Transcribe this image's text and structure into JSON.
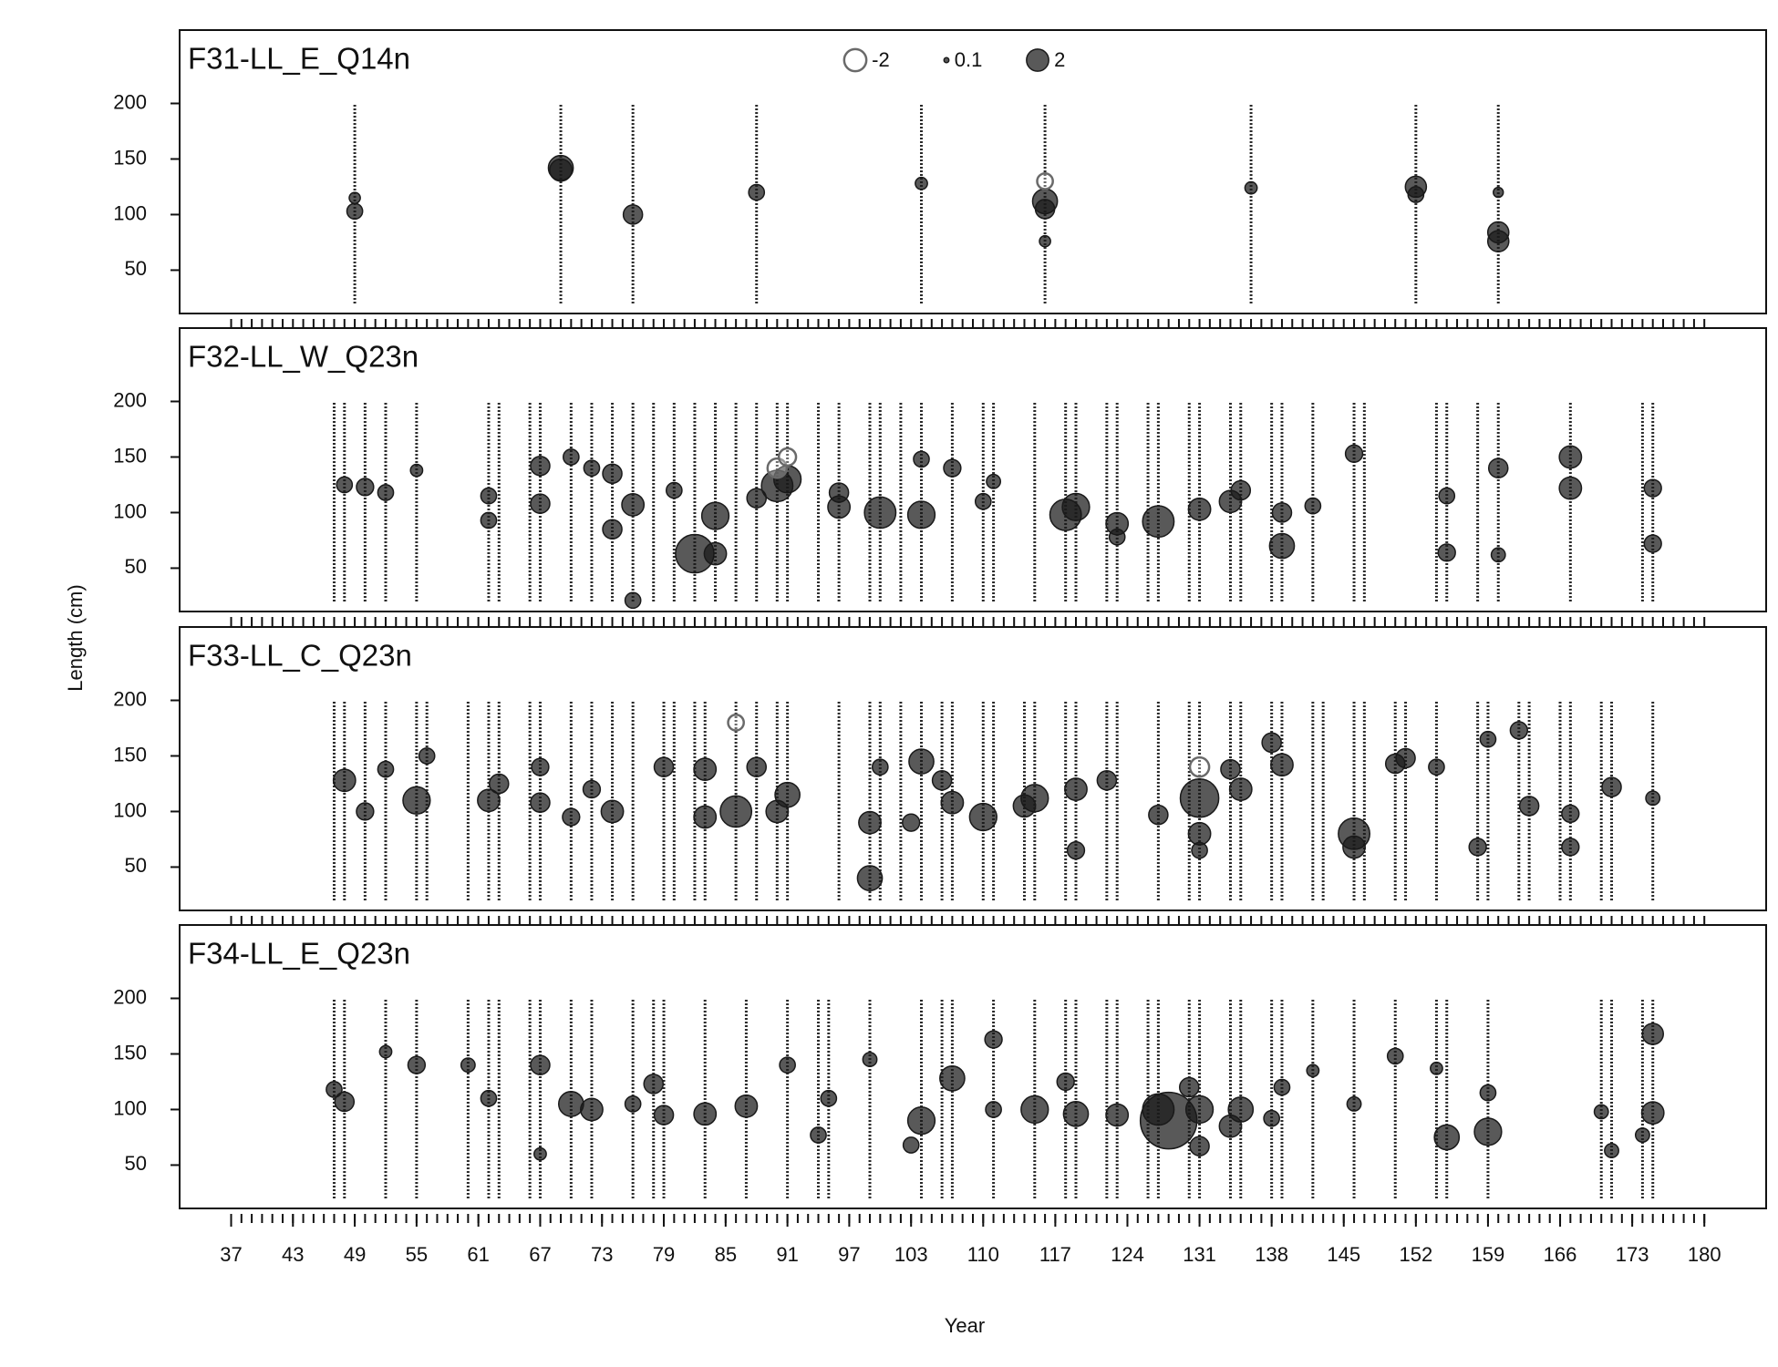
{
  "axes": {
    "xlabel": "Year",
    "ylabel": "Length (cm)",
    "xlim": [
      32,
      186
    ],
    "xticks": [
      37,
      43,
      49,
      55,
      61,
      67,
      73,
      79,
      85,
      91,
      97,
      103,
      110,
      117,
      124,
      131,
      138,
      145,
      152,
      159,
      166,
      173,
      180
    ],
    "xminor": [
      37,
      38,
      39,
      40,
      41,
      42,
      43,
      44,
      45,
      46,
      47,
      48,
      49,
      50,
      51,
      52,
      53,
      54,
      55,
      56,
      57,
      58,
      59,
      60,
      61,
      62,
      63,
      64,
      65,
      66,
      67,
      68,
      69,
      70,
      71,
      72,
      73,
      74,
      75,
      76,
      77,
      78,
      79,
      80,
      81,
      82,
      83,
      84,
      85,
      86,
      87,
      88,
      89,
      90,
      91,
      92,
      93,
      94,
      95,
      96,
      97,
      98,
      99,
      100,
      101,
      102,
      103,
      104,
      105,
      106,
      107,
      108,
      109,
      110,
      111,
      112,
      113,
      114,
      115,
      116,
      117,
      118,
      119,
      120,
      121,
      122,
      123,
      124,
      125,
      126,
      127,
      128,
      129,
      130,
      131,
      132,
      133,
      134,
      135,
      136,
      137,
      138,
      139,
      140,
      141,
      142,
      143,
      144,
      145,
      146,
      147,
      148,
      149,
      150,
      151,
      152,
      153,
      154,
      155,
      156,
      157,
      158,
      159,
      160,
      161,
      162,
      163,
      164,
      165,
      166,
      167,
      168,
      169,
      170,
      171,
      172,
      173,
      174,
      175,
      176,
      177,
      178,
      179,
      180
    ],
    "ylim": [
      11,
      266
    ],
    "yticks": [
      50,
      100,
      150,
      200
    ]
  },
  "legend": {
    "values": [
      -2,
      0.1,
      2
    ]
  },
  "chart_data": [
    {
      "type": "bubble",
      "title": "F31-LL_E_Q14n",
      "bin_range": [
        20,
        200
      ],
      "columns": [
        49,
        69,
        76,
        88,
        104,
        116,
        136,
        152,
        160
      ],
      "x": [
        49,
        49,
        69,
        69,
        76,
        88,
        104,
        116,
        116,
        116,
        116,
        136,
        152,
        152,
        160,
        160,
        160
      ],
      "y": [
        103,
        115,
        142,
        140,
        100,
        120,
        128,
        112,
        105,
        76,
        130,
        124,
        125,
        118,
        84,
        76,
        120
      ],
      "size": [
        1,
        0.5,
        2.5,
        2,
        1.5,
        1,
        0.6,
        2.5,
        1.5,
        0.5,
        -1,
        0.6,
        1.8,
        1,
        1.8,
        1.8,
        0.4
      ]
    },
    {
      "type": "bubble",
      "title": "F32-LL_W_Q23n",
      "bin_range": [
        20,
        200
      ],
      "columns": [
        47,
        48,
        50,
        52,
        55,
        62,
        63,
        66,
        67,
        70,
        72,
        74,
        76,
        78,
        80,
        82,
        84,
        86,
        88,
        90,
        91,
        94,
        96,
        99,
        100,
        102,
        104,
        107,
        110,
        111,
        115,
        118,
        119,
        122,
        123,
        126,
        127,
        130,
        131,
        134,
        135,
        138,
        139,
        142,
        146,
        147,
        154,
        155,
        158,
        160,
        167,
        174,
        175
      ],
      "x": [
        48,
        50,
        52,
        55,
        62,
        62,
        67,
        67,
        70,
        72,
        74,
        74,
        76,
        76,
        80,
        82,
        84,
        84,
        88,
        90,
        91,
        90,
        91,
        96,
        96,
        100,
        104,
        104,
        107,
        110,
        111,
        118,
        119,
        123,
        123,
        127,
        131,
        134,
        135,
        139,
        139,
        142,
        146,
        155,
        155,
        160,
        160,
        167,
        167,
        175,
        175
      ],
      "y": [
        125,
        123,
        118,
        138,
        93,
        115,
        142,
        108,
        150,
        140,
        135,
        85,
        107,
        21,
        120,
        63,
        97,
        63,
        113,
        124,
        130,
        140,
        150,
        105,
        118,
        100,
        98,
        148,
        140,
        110,
        128,
        98,
        105,
        90,
        78,
        92,
        103,
        110,
        120,
        70,
        100,
        106,
        153,
        115,
        64,
        140,
        62,
        150,
        122,
        122,
        72
      ],
      "size": [
        1,
        1.2,
        1,
        0.6,
        1,
        1,
        1.5,
        1.5,
        1,
        1,
        1.5,
        1.5,
        2,
        1,
        1,
        6,
        3,
        2,
        1.5,
        4,
        3,
        -1.5,
        -1.2,
        2,
        1.5,
        4,
        3,
        1,
        1.2,
        1,
        0.8,
        4,
        3,
        2,
        1,
        4,
        2,
        2,
        1.5,
        2.5,
        1.5,
        1,
        1.2,
        1,
        1.2,
        1.5,
        0.8,
        2,
        2,
        1.2,
        1.2
      ]
    },
    {
      "type": "bubble",
      "title": "F33-LL_C_Q23n",
      "bin_range": [
        20,
        200
      ],
      "columns": [
        47,
        48,
        50,
        52,
        55,
        56,
        60,
        62,
        63,
        66,
        67,
        70,
        72,
        74,
        76,
        79,
        80,
        82,
        83,
        86,
        88,
        90,
        91,
        96,
        99,
        100,
        102,
        104,
        106,
        107,
        110,
        111,
        114,
        115,
        118,
        119,
        122,
        123,
        127,
        130,
        131,
        134,
        135,
        138,
        139,
        142,
        143,
        146,
        147,
        150,
        151,
        154,
        158,
        159,
        162,
        163,
        166,
        167,
        170,
        171,
        175
      ],
      "x": [
        48,
        50,
        52,
        55,
        56,
        62,
        63,
        67,
        67,
        70,
        72,
        74,
        79,
        83,
        83,
        86,
        86,
        88,
        90,
        91,
        99,
        99,
        100,
        104,
        103,
        106,
        107,
        110,
        115,
        114,
        119,
        119,
        122,
        127,
        131,
        131,
        131,
        131,
        134,
        135,
        138,
        139,
        146,
        146,
        150,
        151,
        154,
        158,
        159,
        162,
        163,
        167,
        167,
        171,
        175
      ],
      "y": [
        128,
        100,
        138,
        110,
        150,
        110,
        125,
        140,
        108,
        95,
        120,
        100,
        140,
        95,
        138,
        100,
        180,
        140,
        100,
        115,
        90,
        40,
        140,
        145,
        90,
        128,
        108,
        95,
        112,
        105,
        120,
        65,
        128,
        97,
        112,
        80,
        65,
        140,
        138,
        120,
        162,
        142,
        80,
        68,
        143,
        148,
        140,
        68,
        165,
        173,
        105,
        98,
        68,
        122,
        112
      ],
      "size": [
        2,
        1.2,
        1,
        3,
        1,
        2,
        1.5,
        1.2,
        1.5,
        1.2,
        1.2,
        2,
        1.5,
        2,
        2,
        4,
        -1,
        1.5,
        2,
        2.5,
        2,
        2.5,
        1,
        2.5,
        1.2,
        1.5,
        2,
        3,
        3,
        2,
        2,
        1.2,
        1.5,
        1.5,
        6,
        2,
        1,
        -1.5,
        1.5,
        2,
        1.5,
        2,
        4,
        2,
        1.5,
        1.5,
        1,
        1.2,
        1,
        1.2,
        1.5,
        1.2,
        1.2,
        1.5,
        0.8
      ]
    },
    {
      "type": "bubble",
      "title": "F34-LL_E_Q23n",
      "bin_range": [
        20,
        200
      ],
      "columns": [
        47,
        48,
        52,
        55,
        60,
        62,
        63,
        66,
        67,
        70,
        72,
        76,
        78,
        79,
        83,
        87,
        91,
        94,
        95,
        99,
        104,
        106,
        107,
        111,
        115,
        118,
        119,
        122,
        123,
        126,
        127,
        130,
        131,
        134,
        135,
        138,
        139,
        142,
        146,
        150,
        154,
        155,
        159,
        170,
        171,
        174,
        175
      ],
      "x": [
        47,
        48,
        52,
        55,
        60,
        62,
        67,
        67,
        70,
        72,
        76,
        78,
        79,
        83,
        87,
        91,
        94,
        95,
        99,
        104,
        103,
        107,
        111,
        111,
        115,
        118,
        119,
        123,
        127,
        128,
        130,
        131,
        131,
        134,
        135,
        138,
        139,
        142,
        146,
        150,
        155,
        154,
        159,
        159,
        170,
        171,
        175,
        175,
        174
      ],
      "y": [
        118,
        107,
        152,
        140,
        140,
        110,
        140,
        60,
        105,
        100,
        105,
        123,
        95,
        96,
        103,
        140,
        77,
        110,
        145,
        90,
        68,
        128,
        163,
        100,
        100,
        125,
        96,
        95,
        100,
        90,
        120,
        100,
        67,
        85,
        100,
        92,
        120,
        135,
        105,
        148,
        75,
        137,
        80,
        115,
        98,
        63,
        168,
        97,
        77
      ],
      "size": [
        1,
        1.5,
        0.6,
        1.2,
        0.8,
        1,
        1.5,
        0.6,
        2.5,
        2,
        1,
        1.5,
        1.5,
        2,
        2,
        1,
        1,
        1,
        0.8,
        3,
        1,
        2.5,
        1.2,
        1,
        3,
        1.2,
        2.5,
        2,
        4,
        13,
        1.5,
        3,
        1.5,
        2,
        2.5,
        1,
        1,
        0.6,
        0.8,
        1,
        2.5,
        0.6,
        3,
        1,
        0.8,
        0.8,
        1.8,
        2,
        0.8
      ]
    }
  ]
}
